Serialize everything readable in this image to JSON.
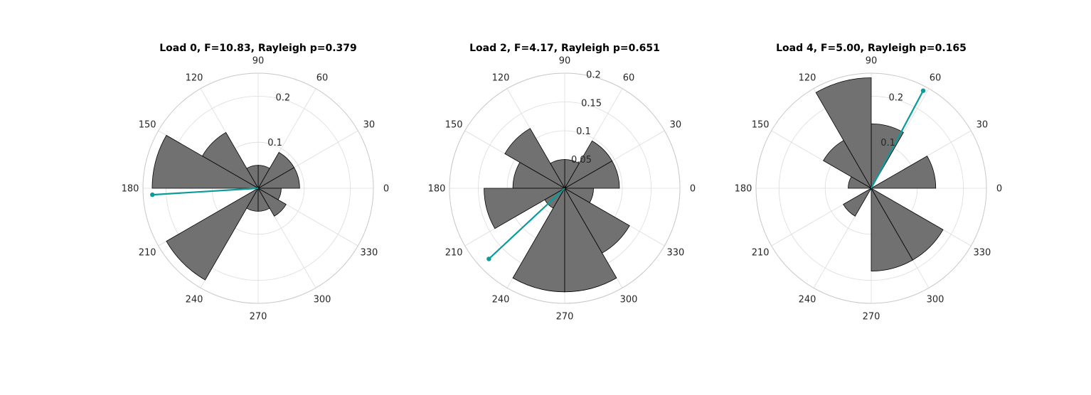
{
  "chart_data": [
    {
      "type": "polar-histogram",
      "title": "Load 0, F=10.83, Rayleigh p=0.379",
      "theta_ticks": [
        "0",
        "30",
        "60",
        "90",
        "120",
        "150",
        "180",
        "210",
        "240",
        "270",
        "300",
        "330"
      ],
      "r_ticks": [
        "0.1",
        "0.2"
      ],
      "r_tick_values": [
        0.1,
        0.2
      ],
      "rmax": 0.25,
      "bin_width_deg": 30,
      "bins": [
        {
          "center_deg": 15,
          "value": 0.09
        },
        {
          "center_deg": 45,
          "value": 0.09
        },
        {
          "center_deg": 75,
          "value": 0.05
        },
        {
          "center_deg": 105,
          "value": 0.05
        },
        {
          "center_deg": 135,
          "value": 0.14
        },
        {
          "center_deg": 165,
          "value": 0.23
        },
        {
          "center_deg": 195,
          "value": 0.0
        },
        {
          "center_deg": 225,
          "value": 0.23
        },
        {
          "center_deg": 255,
          "value": 0.05
        },
        {
          "center_deg": 285,
          "value": 0.05
        },
        {
          "center_deg": 315,
          "value": 0.07
        },
        {
          "center_deg": 345,
          "value": 0.05
        }
      ],
      "mean_vector": {
        "angle_deg": 183.5,
        "length": 0.23
      },
      "grid": true
    },
    {
      "type": "polar-histogram",
      "title": "Load 2, F=4.17, Rayleigh p=0.651",
      "theta_ticks": [
        "0",
        "30",
        "60",
        "90",
        "120",
        "150",
        "180",
        "210",
        "240",
        "270",
        "300",
        "330"
      ],
      "r_ticks": [
        "0.05",
        "0.1",
        "0.15",
        "0.2"
      ],
      "r_tick_values": [
        0.05,
        0.1,
        0.15,
        0.2
      ],
      "rmax": 0.2,
      "bin_width_deg": 30,
      "bins": [
        {
          "center_deg": 15,
          "value": 0.095
        },
        {
          "center_deg": 45,
          "value": 0.095
        },
        {
          "center_deg": 75,
          "value": 0.05
        },
        {
          "center_deg": 105,
          "value": 0.05
        },
        {
          "center_deg": 135,
          "value": 0.12
        },
        {
          "center_deg": 165,
          "value": 0.09
        },
        {
          "center_deg": 195,
          "value": 0.14
        },
        {
          "center_deg": 225,
          "value": 0.04
        },
        {
          "center_deg": 255,
          "value": 0.18
        },
        {
          "center_deg": 285,
          "value": 0.18
        },
        {
          "center_deg": 315,
          "value": 0.13
        },
        {
          "center_deg": 345,
          "value": 0.05
        }
      ],
      "mean_vector": {
        "angle_deg": 223,
        "length": 0.18
      },
      "grid": true
    },
    {
      "type": "polar-histogram",
      "title": "Load 4, F=5.00, Rayleigh p=0.165",
      "theta_ticks": [
        "0",
        "30",
        "60",
        "90",
        "120",
        "150",
        "180",
        "210",
        "240",
        "270",
        "300",
        "330"
      ],
      "r_ticks": [
        "0.1",
        "0.2"
      ],
      "r_tick_values": [
        0.1,
        0.2
      ],
      "rmax": 0.25,
      "bin_width_deg": 30,
      "bins": [
        {
          "center_deg": 15,
          "value": 0.14
        },
        {
          "center_deg": 45,
          "value": 0.0
        },
        {
          "center_deg": 75,
          "value": 0.14
        },
        {
          "center_deg": 105,
          "value": 0.24
        },
        {
          "center_deg": 135,
          "value": 0.12
        },
        {
          "center_deg": 165,
          "value": 0.05
        },
        {
          "center_deg": 195,
          "value": 0.0
        },
        {
          "center_deg": 225,
          "value": 0.07
        },
        {
          "center_deg": 255,
          "value": 0.0
        },
        {
          "center_deg": 285,
          "value": 0.18
        },
        {
          "center_deg": 315,
          "value": 0.18
        },
        {
          "center_deg": 345,
          "value": 0.0
        }
      ],
      "mean_vector": {
        "angle_deg": 62,
        "length": 0.24
      },
      "grid": true
    }
  ],
  "colors": {
    "bar_fill": "#717171",
    "bar_edge": "#000000",
    "mean_vector": "#0b9c9a",
    "grid": "#dcdcdc"
  }
}
